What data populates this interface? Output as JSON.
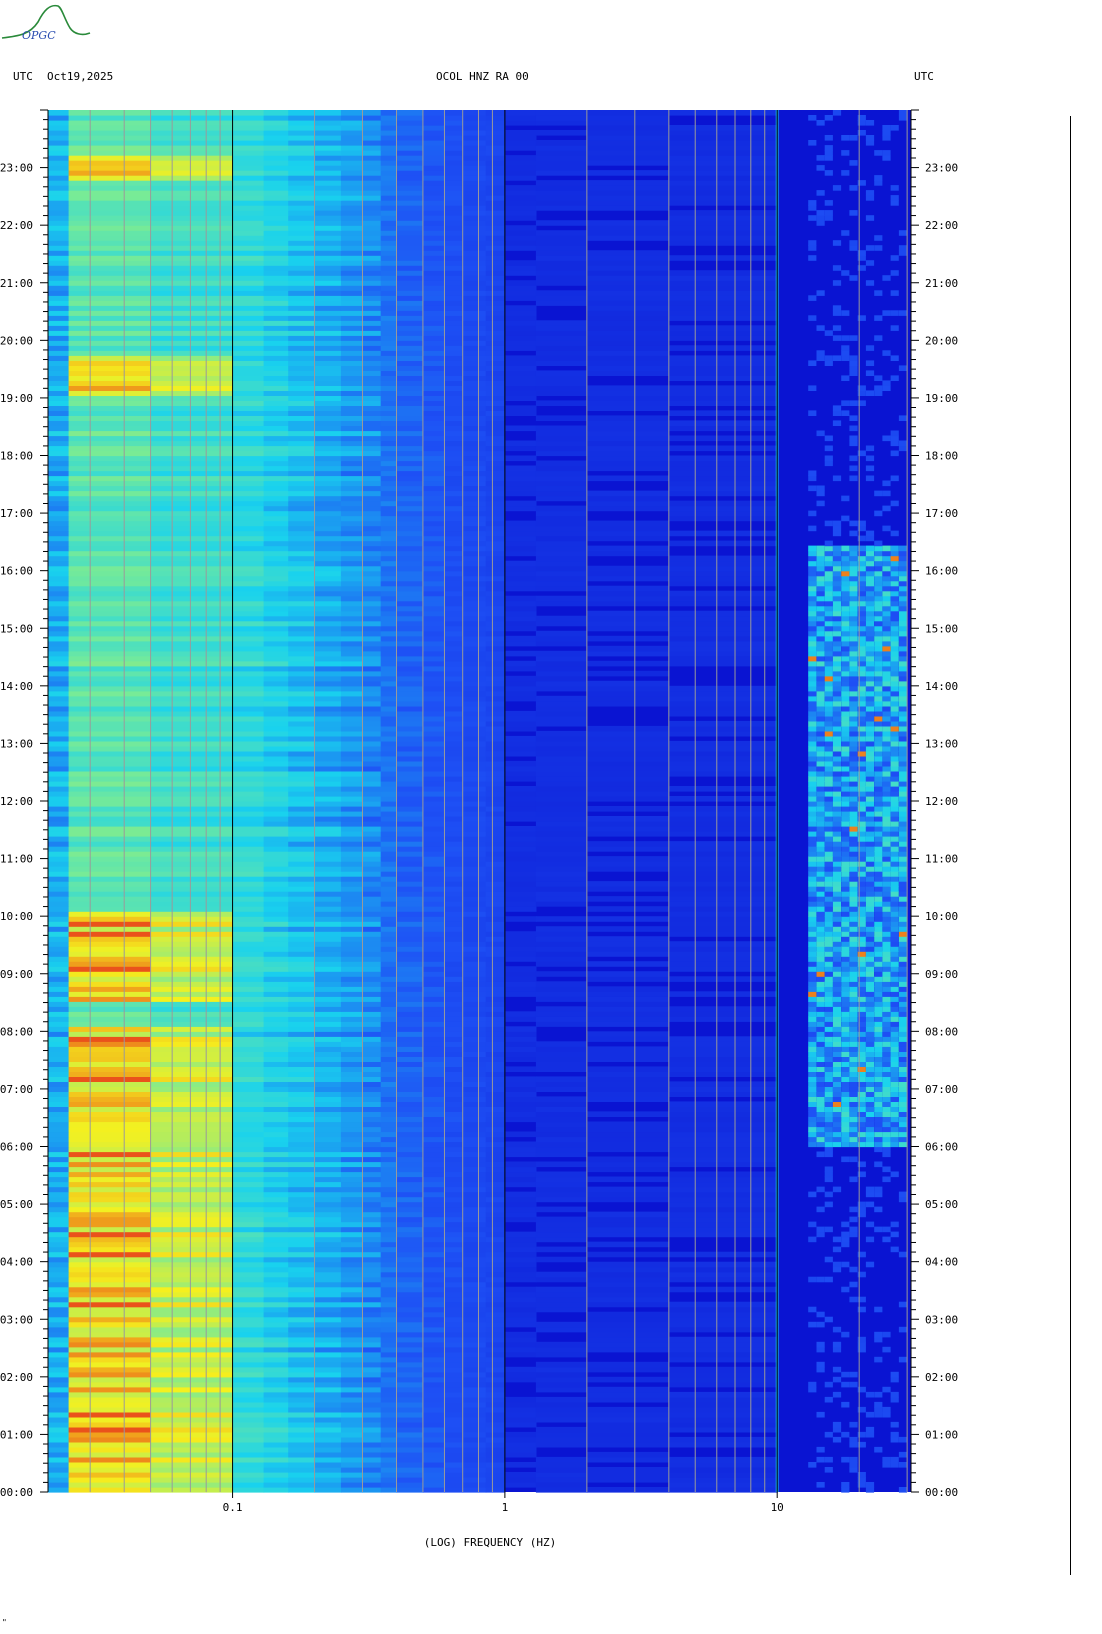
{
  "header": {
    "left_tz": "UTC",
    "date": "Oct19,2025",
    "station": "OCOL HNZ RA 00",
    "right_tz": "UTC"
  },
  "logo": {
    "text": "OPGC",
    "color": "#2a8a3a"
  },
  "footer_mark": "\"",
  "chart_data": {
    "type": "heatmap",
    "title": "",
    "xlabel": "(LOG) FREQUENCY (HZ)",
    "ylabel": "",
    "x_scale": "log",
    "xlim": [
      0.021,
      31
    ],
    "x_ticks": [
      {
        "value": 0.1,
        "label": "0.1"
      },
      {
        "value": 1,
        "label": "1"
      },
      {
        "value": 10,
        "label": "10"
      }
    ],
    "ylim_hours": [
      0,
      24
    ],
    "y_ticks": [
      "00:00",
      "01:00",
      "02:00",
      "03:00",
      "04:00",
      "05:00",
      "06:00",
      "07:00",
      "08:00",
      "09:00",
      "10:00",
      "11:00",
      "12:00",
      "13:00",
      "14:00",
      "15:00",
      "16:00",
      "17:00",
      "18:00",
      "19:00",
      "20:00",
      "21:00",
      "22:00",
      "23:00"
    ],
    "colors": {
      "background": "#0a14d2",
      "low": "#1a3cf0",
      "mid": "#19d2ee",
      "high": "#f5f01e",
      "peak": "#e8321a"
    },
    "gridlines_hz": [
      0.03,
      0.04,
      0.05,
      0.06,
      0.07,
      0.08,
      0.09,
      0.2,
      0.3,
      0.4,
      0.5,
      0.6,
      0.7,
      0.8,
      0.9,
      2,
      3,
      4,
      5,
      6,
      7,
      8,
      9,
      20,
      30
    ],
    "features": {
      "microseism_band_hz": [
        0.022,
        0.1
      ],
      "microseism_strong_hours": [
        [
          0,
          8
        ],
        [
          8.5,
          10
        ],
        [
          19,
          19.7
        ],
        [
          22.7,
          23.2
        ]
      ],
      "secondary_band_hz": [
        0.1,
        0.35
      ],
      "high_freq_band_hz": [
        13,
        30
      ],
      "high_freq_active_hours": [
        6,
        16.4
      ],
      "narrow_line_hz": 10
    }
  }
}
